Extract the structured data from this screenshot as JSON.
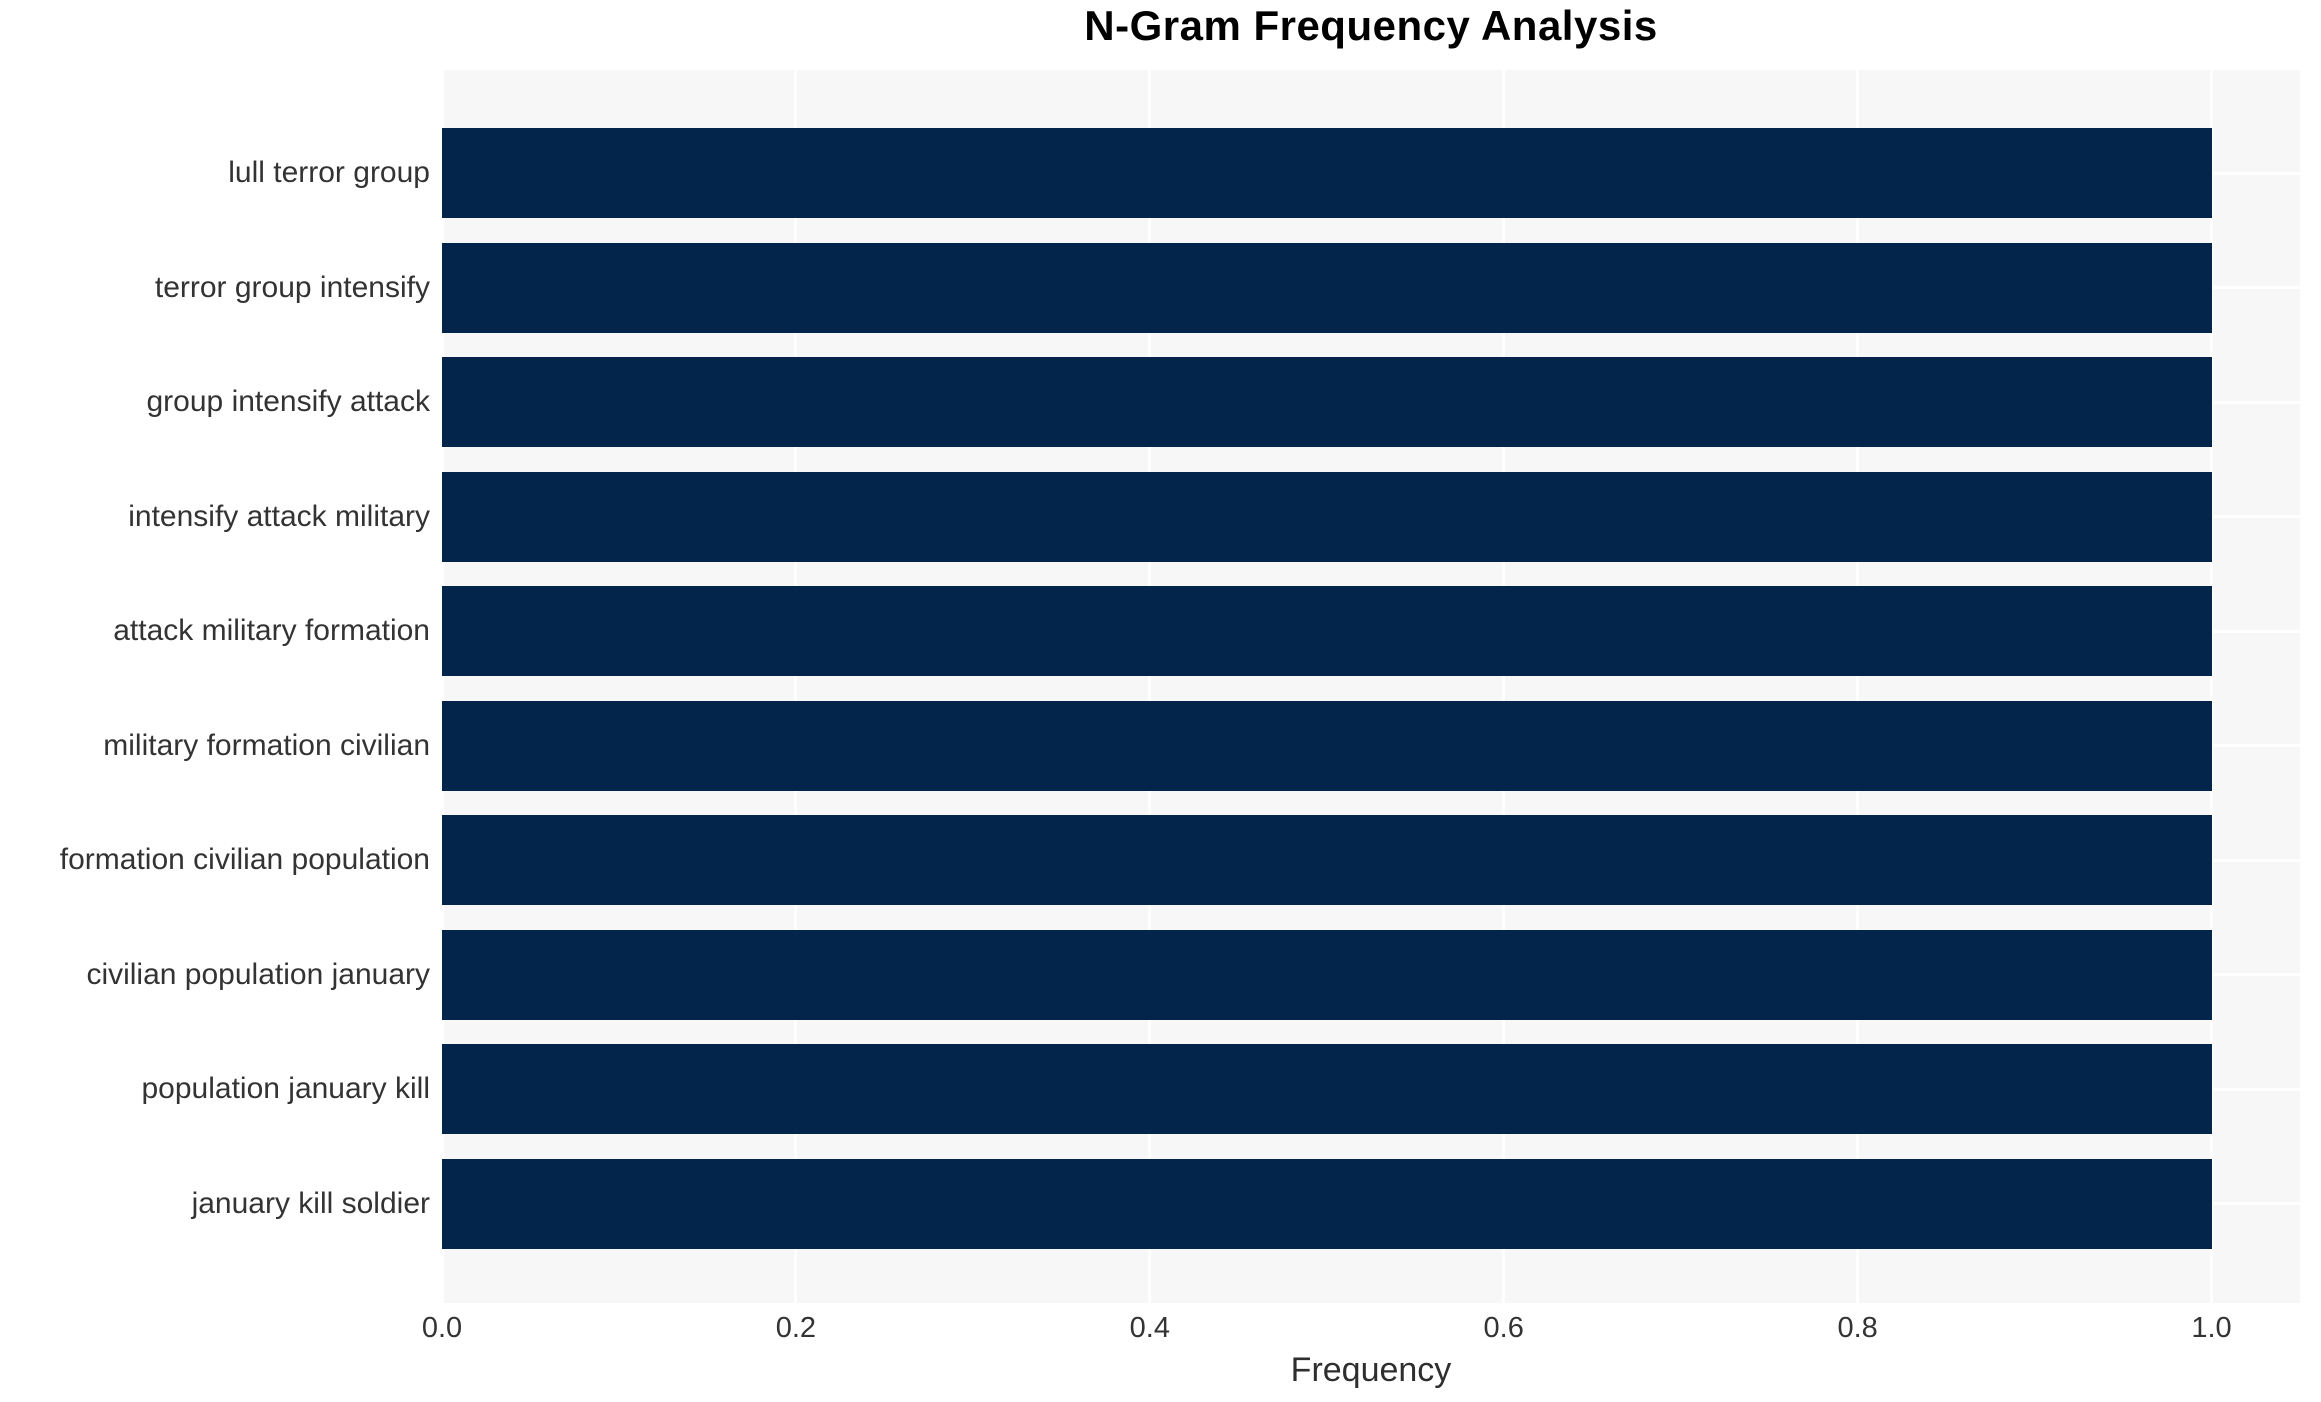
{
  "chart_data": {
    "type": "bar",
    "orientation": "horizontal",
    "title": "N-Gram Frequency Analysis",
    "xlabel": "Frequency",
    "ylabel": "",
    "categories": [
      "lull terror group",
      "terror group intensify",
      "group intensify attack",
      "intensify attack military",
      "attack military formation",
      "military formation civilian",
      "formation civilian population",
      "civilian population january",
      "population january kill",
      "january kill soldier"
    ],
    "values": [
      1.0,
      1.0,
      1.0,
      1.0,
      1.0,
      1.0,
      1.0,
      1.0,
      1.0,
      1.0
    ],
    "xticks": [
      0.0,
      0.2,
      0.4,
      0.6,
      0.8,
      1.0
    ],
    "xtick_labels": [
      "0.0",
      "0.2",
      "0.4",
      "0.6",
      "0.8",
      "1.0"
    ],
    "xlim": [
      0,
      1.05
    ],
    "grid": true,
    "legend": false,
    "colors": {
      "bar": "#03254c",
      "plot_background": "#f7f7f7",
      "gridline": "#ffffff",
      "tick_text": "#333333",
      "title_text": "#000000"
    }
  }
}
